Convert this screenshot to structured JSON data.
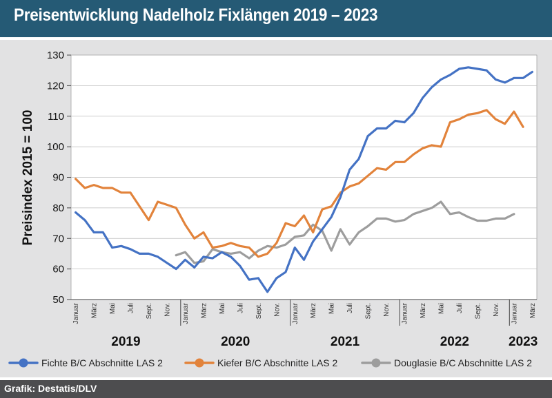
{
  "title": "Preisentwicklung Nadelholz Fixlängen 2019 – 2023",
  "source": "Grafik: Destatis/DLV",
  "chart_data": {
    "type": "line",
    "ylabel": "Preisindex 2015 = 100",
    "ylim": [
      50,
      130
    ],
    "yticks": [
      50,
      60,
      70,
      80,
      90,
      100,
      110,
      120,
      130
    ],
    "grid": true,
    "legend_position": "bottom",
    "month_labels": [
      "Januar",
      "",
      "März",
      "",
      "Mai",
      "",
      "Juli",
      "",
      "Sept.",
      "",
      "Nov.",
      ""
    ],
    "year_labels": [
      "2019",
      "2020",
      "2021",
      "2022",
      "2023"
    ],
    "months_total": 51,
    "series": [
      {
        "name": "Fichte B/C Abschnitte LAS 2",
        "color": "#4472c4",
        "start_month": 0,
        "values": [
          78.5,
          76,
          72,
          72,
          67,
          67.5,
          66.5,
          65,
          65,
          64,
          62,
          60,
          63,
          60.5,
          64,
          63.5,
          65.5,
          64,
          61,
          56.5,
          57,
          52.5,
          57,
          59,
          67,
          63,
          69,
          73,
          77,
          83.5,
          92.5,
          96,
          103.5,
          106,
          106,
          108.5,
          108,
          111,
          116,
          119.5,
          122,
          123.5,
          125.5,
          126,
          125.5,
          125,
          122,
          121,
          122.5,
          122.5,
          124.5
        ]
      },
      {
        "name": "Kiefer B/C Abschnitte LAS 2",
        "color": "#e2833b",
        "start_month": 0,
        "values": [
          89.5,
          86.5,
          87.5,
          86.5,
          86.5,
          85,
          85,
          80.5,
          76,
          82,
          81,
          80,
          74.5,
          70,
          72,
          67,
          67.5,
          68.5,
          67.5,
          67,
          64,
          65,
          68.5,
          75,
          74,
          77.5,
          72,
          79.5,
          80.5,
          85,
          87,
          88,
          90.5,
          93,
          92.5,
          95,
          95,
          97.5,
          99.5,
          100.5,
          100,
          108,
          109,
          110.5,
          111,
          112,
          109,
          107.5,
          111.5,
          106.5
        ]
      },
      {
        "name": "Douglasie B/C Abschnitte LAS 2",
        "color": "#9d9d9d",
        "start_month": 11,
        "values": [
          64.5,
          65.5,
          62,
          62.5,
          66.5,
          65.5,
          65,
          65.5,
          63.5,
          66,
          67.5,
          67,
          68,
          70.5,
          71,
          74.5,
          72.5,
          66,
          73,
          68,
          72,
          74,
          76.5,
          76.5,
          75.5,
          76,
          78,
          79,
          80,
          82,
          78,
          78.5,
          77,
          75.8,
          75.8,
          76.5,
          76.5,
          78
        ]
      }
    ]
  }
}
